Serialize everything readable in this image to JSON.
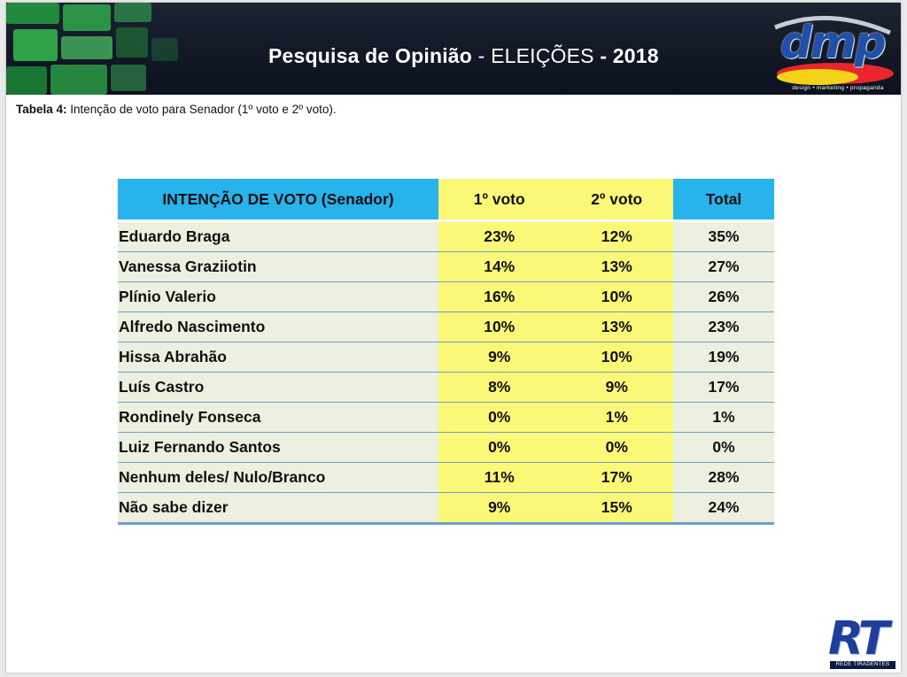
{
  "header": {
    "title_main": "Pesquisa de Opinião",
    "title_sep": " - ",
    "title_event": "ELEIÇÕES",
    "title_sep2": " - ",
    "title_year": "2018",
    "logo_text": "dmp",
    "logo_tagline": "design • marketing • propaganda"
  },
  "caption": {
    "label": "Tabela 4:",
    "text": " Intenção de voto para Senador (1º voto e 2º voto)."
  },
  "table": {
    "headers": [
      "INTENÇÃO DE VOTO (Senador)",
      "1º voto",
      "2º voto",
      "Total"
    ],
    "rows": [
      [
        "Eduardo Braga",
        "23%",
        "12%",
        "35%"
      ],
      [
        "Vanessa Graziiotin",
        "14%",
        "13%",
        "27%"
      ],
      [
        "Plínio Valerio",
        "16%",
        "10%",
        "26%"
      ],
      [
        "Alfredo Nascimento",
        "10%",
        "13%",
        "23%"
      ],
      [
        "Hissa Abrahão",
        "9%",
        "10%",
        "19%"
      ],
      [
        "Luís Castro",
        "8%",
        "9%",
        "17%"
      ],
      [
        "Rondinely Fonseca",
        "0%",
        "1%",
        "1%"
      ],
      [
        "Luiz Fernando Santos",
        "0%",
        "0%",
        "0%"
      ],
      [
        "Nenhum deles/ Nulo/Branco",
        "11%",
        "17%",
        "28%"
      ],
      [
        "Não sabe dizer",
        "9%",
        "15%",
        "24%"
      ]
    ]
  },
  "footer_logo": {
    "letters": "RT",
    "tagline": "REDE TIRADENTES"
  },
  "colors": {
    "header_cell": "#29b3ec",
    "vote_column": "#fbf777",
    "name_column": "#ebf1de",
    "row_rule": "#6f9fd1",
    "banner": "#121826"
  }
}
